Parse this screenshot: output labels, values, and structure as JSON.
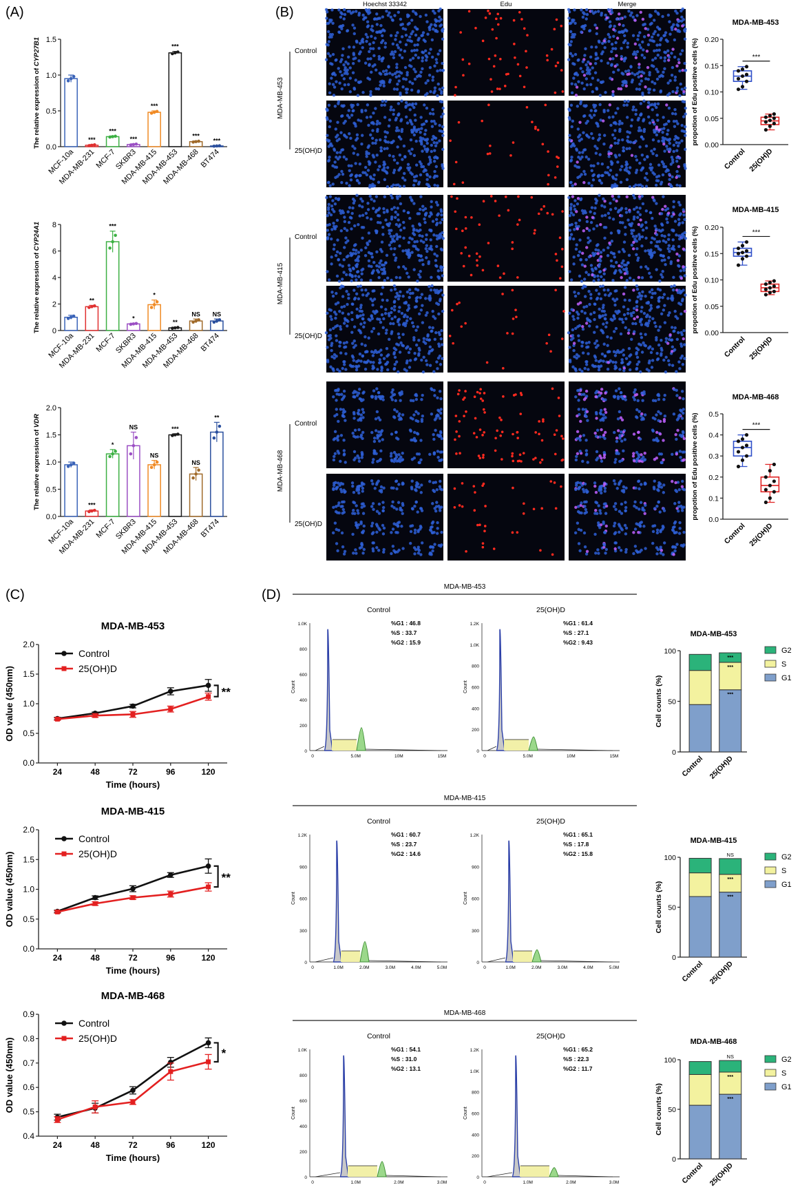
{
  "panels": {
    "A": "(A)",
    "B": "(B)",
    "C": "(C)",
    "D": "(D)"
  },
  "micro": {
    "columns": [
      "Hoechst 33342",
      "Edu",
      "Merge"
    ],
    "row_labels": [
      "Control",
      "25(OH)D"
    ],
    "groups": [
      "MDA-MB-453",
      "MDA-MB-415",
      "MDA-MB-468"
    ],
    "colors": {
      "hoechst": "#2e5fd6",
      "edu": "#ff2a1f",
      "merge_overlap": "#c060ff",
      "background": "#05060f"
    }
  },
  "flow": {
    "col_labels": [
      "Control",
      "25(OH)D"
    ],
    "groups": [
      {
        "title": "MDA-MB-453",
        "y_ticks": [
          [
            "0",
            "200",
            "400",
            "600",
            "800",
            "1.0K"
          ],
          [
            "0",
            "200",
            "400",
            "600",
            "800",
            "1.0K",
            "1.2K"
          ]
        ],
        "x_ticks": [
          "0",
          "5.0M",
          "10M",
          "15M"
        ],
        "stats": [
          [
            "%G1 : 46.8",
            "%S : 33.7",
            "%G2 : 15.9"
          ],
          [
            "%G1 : 61.4",
            "%S : 27.1",
            "%G2 : 9.43"
          ]
        ],
        "ylabel": "Count"
      },
      {
        "title": "MDA-MB-415",
        "y_ticks": [
          [
            "0",
            "300",
            "600",
            "900",
            "1.2K"
          ],
          [
            "0",
            "300",
            "600",
            "900",
            "1.2K"
          ]
        ],
        "x_ticks": [
          "0",
          "1.0M",
          "2.0M",
          "3.0M",
          "4.0M",
          "5.0M"
        ],
        "stats": [
          [
            "%G1 : 60.7",
            "%S : 23.7",
            "%G2 : 14.6"
          ],
          [
            "%G1 : 65.1",
            "%S : 17.8",
            "%G2 : 15.8"
          ]
        ],
        "ylabel": "Count"
      },
      {
        "title": "MDA-MB-468",
        "y_ticks": [
          [
            "0",
            "200",
            "400",
            "600",
            "800",
            "1.0K"
          ],
          [
            "0",
            "200",
            "400",
            "600",
            "800",
            "1.0K",
            "1.2K"
          ]
        ],
        "x_ticks": [
          "0",
          "1.0M",
          "2.0M",
          "3.0M"
        ],
        "stats": [
          [
            "%G1 : 54.1",
            "%S : 31.0",
            "%G2 : 13.1"
          ],
          [
            "%G1 : 65.2",
            "%S : 22.3",
            "%G2 : 11.7"
          ]
        ],
        "ylabel": "Count"
      }
    ]
  },
  "chart_data": [
    {
      "id": "A1",
      "type": "bar",
      "ylabel_prefix": "The relative expression of ",
      "ylabel_gene": "CYP27B1",
      "categories": [
        "MCF-10a",
        "MDA-MB-231",
        "MCF-7",
        "SKBR3",
        "MDA-MB-415",
        "MDA-MB-453",
        "MDA-MB-468",
        "BT474"
      ],
      "values": [
        0.95,
        0.02,
        0.14,
        0.03,
        0.48,
        1.31,
        0.07,
        0.01
      ],
      "errors": [
        0.05,
        0.01,
        0.01,
        0.01,
        0.02,
        0.02,
        0.01,
        0.005
      ],
      "sig": [
        "",
        "***",
        "***",
        "***",
        "***",
        "***",
        "***",
        "***"
      ],
      "ylim": [
        0,
        1.5
      ],
      "yticks": [
        "0.0",
        "0.5",
        "1.0",
        "1.5"
      ],
      "colors": [
        "#3a63b8",
        "#e03030",
        "#3cb043",
        "#9b4fc4",
        "#f08a24",
        "#1a1a1a",
        "#a06a2a",
        "#2a4f9e"
      ]
    },
    {
      "id": "A2",
      "type": "bar",
      "ylabel_prefix": "The relative expression of ",
      "ylabel_gene": "CYP24A1",
      "categories": [
        "MCF-10a",
        "MDA-MB-231",
        "MCF-7",
        "SKBR3",
        "MDA-MB-415",
        "MDA-MB-453",
        "MDA-MB-468",
        "BT474"
      ],
      "values": [
        1.0,
        1.8,
        6.7,
        0.5,
        1.95,
        0.2,
        0.72,
        0.72
      ],
      "errors": [
        0.15,
        0.1,
        0.8,
        0.05,
        0.35,
        0.05,
        0.15,
        0.15
      ],
      "sig": [
        "",
        "**",
        "***",
        "*",
        "*",
        "**",
        "NS",
        "NS"
      ],
      "ylim": [
        0,
        8
      ],
      "yticks": [
        "0",
        "2",
        "4",
        "6",
        "8"
      ],
      "colors": [
        "#3a63b8",
        "#e03030",
        "#3cb043",
        "#9b4fc4",
        "#f08a24",
        "#1a1a1a",
        "#a06a2a",
        "#2a4f9e"
      ]
    },
    {
      "id": "A3",
      "type": "bar",
      "ylabel_prefix": "The relative expression of ",
      "ylabel_gene": "VDR",
      "categories": [
        "MCF-10a",
        "MDA-MB-231",
        "MCF-7",
        "SKBR3",
        "MDA-MB-415",
        "MDA-MB-453",
        "MDA-MB-468",
        "BT474"
      ],
      "values": [
        0.95,
        0.1,
        1.15,
        1.3,
        0.95,
        1.5,
        0.78,
        1.55
      ],
      "errors": [
        0.05,
        0.02,
        0.08,
        0.25,
        0.08,
        0.02,
        0.12,
        0.18
      ],
      "sig": [
        "",
        "***",
        "*",
        "NS",
        "NS",
        "***",
        "NS",
        "**"
      ],
      "ylim": [
        0,
        2.0
      ],
      "yticks": [
        "0.0",
        "0.5",
        "1.0",
        "1.5",
        "2.0"
      ],
      "colors": [
        "#3a63b8",
        "#e03030",
        "#3cb043",
        "#9b4fc4",
        "#f08a24",
        "#1a1a1a",
        "#a06a2a",
        "#2a4f9e"
      ]
    },
    {
      "id": "B1",
      "type": "box",
      "title": "MDA-MB-453",
      "ylabel": "propotion of Edu positive cells (%)",
      "categories": [
        "Control",
        "25(OH)D"
      ],
      "ylim": [
        0,
        0.2
      ],
      "yticks": [
        "0.00",
        "0.05",
        "0.10",
        "0.15",
        "0.20"
      ],
      "sig": "***",
      "boxes": [
        {
          "min": 0.105,
          "q1": 0.12,
          "median": 0.13,
          "q3": 0.14,
          "max": 0.148
        },
        {
          "min": 0.028,
          "q1": 0.038,
          "median": 0.045,
          "q3": 0.052,
          "max": 0.058
        }
      ],
      "points": [
        [
          0.105,
          0.11,
          0.12,
          0.125,
          0.13,
          0.133,
          0.14,
          0.143,
          0.148
        ],
        [
          0.028,
          0.035,
          0.04,
          0.043,
          0.046,
          0.05,
          0.052,
          0.055,
          0.058
        ]
      ],
      "colors": [
        "#2f4fc9",
        "#e02424"
      ]
    },
    {
      "id": "B2",
      "type": "box",
      "title": "MDA-MB-415",
      "ylabel": "propotion of Edu positive cells (%)",
      "categories": [
        "Control",
        "25(OH)D"
      ],
      "ylim": [
        0,
        0.2
      ],
      "yticks": [
        "0.00",
        "0.05",
        "0.10",
        "0.15",
        "0.20"
      ],
      "sig": "***",
      "boxes": [
        {
          "min": 0.128,
          "q1": 0.145,
          "median": 0.152,
          "q3": 0.16,
          "max": 0.172
        },
        {
          "min": 0.072,
          "q1": 0.078,
          "median": 0.085,
          "q3": 0.092,
          "max": 0.098
        }
      ],
      "points": [
        [
          0.128,
          0.14,
          0.145,
          0.15,
          0.152,
          0.155,
          0.16,
          0.165,
          0.172
        ],
        [
          0.072,
          0.076,
          0.078,
          0.082,
          0.085,
          0.088,
          0.092,
          0.095,
          0.098
        ]
      ],
      "colors": [
        "#2f4fc9",
        "#e02424"
      ]
    },
    {
      "id": "B3",
      "type": "box",
      "title": "MDA-MB-468",
      "ylabel": "propotion of Edu positive cells (%)",
      "categories": [
        "Control",
        "25(OH)D"
      ],
      "ylim": [
        0,
        0.5
      ],
      "yticks": [
        "0.0",
        "0.1",
        "0.2",
        "0.3",
        "0.4",
        "0.5"
      ],
      "sig": "***",
      "boxes": [
        {
          "min": 0.25,
          "q1": 0.3,
          "median": 0.34,
          "q3": 0.37,
          "max": 0.4
        },
        {
          "min": 0.08,
          "q1": 0.13,
          "median": 0.16,
          "q3": 0.2,
          "max": 0.26
        }
      ],
      "points": [
        [
          0.25,
          0.28,
          0.3,
          0.32,
          0.34,
          0.35,
          0.37,
          0.38,
          0.4
        ],
        [
          0.08,
          0.1,
          0.13,
          0.14,
          0.16,
          0.18,
          0.2,
          0.23,
          0.26
        ]
      ],
      "colors": [
        "#2f4fc9",
        "#e02424"
      ]
    },
    {
      "id": "C1",
      "type": "line",
      "title": "MDA-MB-453",
      "xlabel": "Time (hours)",
      "ylabel": "OD value (450nm)",
      "x": [
        "24",
        "48",
        "72",
        "96",
        "120"
      ],
      "ylim": [
        0,
        2.0
      ],
      "yticks": [
        "0.0",
        "0.5",
        "1.0",
        "1.5",
        "2.0"
      ],
      "sig": "**",
      "series": [
        {
          "name": "Control",
          "values": [
            0.75,
            0.84,
            0.96,
            1.21,
            1.31
          ],
          "errors": [
            0.02,
            0.02,
            0.03,
            0.06,
            0.1
          ],
          "color": "#111111"
        },
        {
          "name": "25(OH)D",
          "values": [
            0.74,
            0.8,
            0.82,
            0.91,
            1.12
          ],
          "errors": [
            0.02,
            0.03,
            0.05,
            0.05,
            0.06
          ],
          "color": "#e32020"
        }
      ]
    },
    {
      "id": "C2",
      "type": "line",
      "title": "MDA-MB-415",
      "xlabel": "Time (hours)",
      "ylabel": "OD value (450nm)",
      "x": [
        "24",
        "48",
        "72",
        "96",
        "120"
      ],
      "ylim": [
        0,
        2.0
      ],
      "yticks": [
        "0.0",
        "0.5",
        "1.0",
        "1.5",
        "2.0"
      ],
      "sig": "**",
      "series": [
        {
          "name": "Control",
          "values": [
            0.63,
            0.86,
            1.01,
            1.24,
            1.39
          ],
          "errors": [
            0.02,
            0.03,
            0.05,
            0.04,
            0.12
          ],
          "color": "#111111"
        },
        {
          "name": "25(OH)D",
          "values": [
            0.62,
            0.76,
            0.86,
            0.92,
            1.04
          ],
          "errors": [
            0.02,
            0.03,
            0.03,
            0.05,
            0.07
          ],
          "color": "#e32020"
        }
      ]
    },
    {
      "id": "C3",
      "type": "line",
      "title": "MDA-MB-468",
      "xlabel": "Time (hours)",
      "ylabel": "OD value (450nm)",
      "x": [
        "24",
        "48",
        "72",
        "96",
        "120"
      ],
      "ylim": [
        0.4,
        0.9
      ],
      "yticks": [
        "0.4",
        "0.5",
        "0.6",
        "0.7",
        "0.8",
        "0.9"
      ],
      "sig": "*",
      "series": [
        {
          "name": "Control",
          "values": [
            0.478,
            0.515,
            0.588,
            0.703,
            0.783
          ],
          "errors": [
            0.012,
            0.02,
            0.015,
            0.02,
            0.02
          ],
          "color": "#111111"
        },
        {
          "name": "25(OH)D",
          "values": [
            0.468,
            0.52,
            0.54,
            0.665,
            0.705
          ],
          "errors": [
            0.012,
            0.025,
            0.01,
            0.035,
            0.03
          ],
          "color": "#e32020"
        }
      ]
    },
    {
      "id": "D1",
      "type": "stacked-bar",
      "title": "MDA-MB-453",
      "ylabel": "Cell counts (%)",
      "categories": [
        "Control",
        "25(OH)D"
      ],
      "ylim": [
        0,
        100
      ],
      "yticks": [
        "0",
        "50",
        "100"
      ],
      "series": [
        {
          "name": "G1",
          "values": [
            46.8,
            61.4
          ],
          "color": "#7f9fcb"
        },
        {
          "name": "S",
          "values": [
            33.7,
            27.1
          ],
          "color": "#f3f29f"
        },
        {
          "name": "G2",
          "values": [
            15.9,
            9.43
          ],
          "color": "#2bb37a"
        }
      ],
      "sig": [
        "***",
        "***",
        "***"
      ],
      "legend": [
        "G2",
        "S",
        "G1"
      ]
    },
    {
      "id": "D2",
      "type": "stacked-bar",
      "title": "MDA-MB-415",
      "ylabel": "Cell counts (%)",
      "categories": [
        "Control",
        "25(OH)D"
      ],
      "ylim": [
        0,
        100
      ],
      "yticks": [
        "0",
        "50",
        "100"
      ],
      "series": [
        {
          "name": "G1",
          "values": [
            60.7,
            65.1
          ],
          "color": "#7f9fcb"
        },
        {
          "name": "S",
          "values": [
            23.7,
            17.8
          ],
          "color": "#f3f29f"
        },
        {
          "name": "G2",
          "values": [
            14.6,
            15.8
          ],
          "color": "#2bb37a"
        }
      ],
      "sig": [
        "***",
        "***",
        "NS"
      ],
      "legend": [
        "G2",
        "S",
        "G1"
      ]
    },
    {
      "id": "D3",
      "type": "stacked-bar",
      "title": "MDA-MB-468",
      "ylabel": "Cell counts (%)",
      "categories": [
        "Control",
        "25(OH)D"
      ],
      "ylim": [
        0,
        100
      ],
      "yticks": [
        "0",
        "50",
        "100"
      ],
      "series": [
        {
          "name": "G1",
          "values": [
            54.1,
            65.2
          ],
          "color": "#7f9fcb"
        },
        {
          "name": "S",
          "values": [
            31.0,
            22.3
          ],
          "color": "#f3f29f"
        },
        {
          "name": "G2",
          "values": [
            13.1,
            11.7
          ],
          "color": "#2bb37a"
        }
      ],
      "sig": [
        "***",
        "***",
        "NS"
      ],
      "legend": [
        "G2",
        "S",
        "G1"
      ]
    }
  ]
}
